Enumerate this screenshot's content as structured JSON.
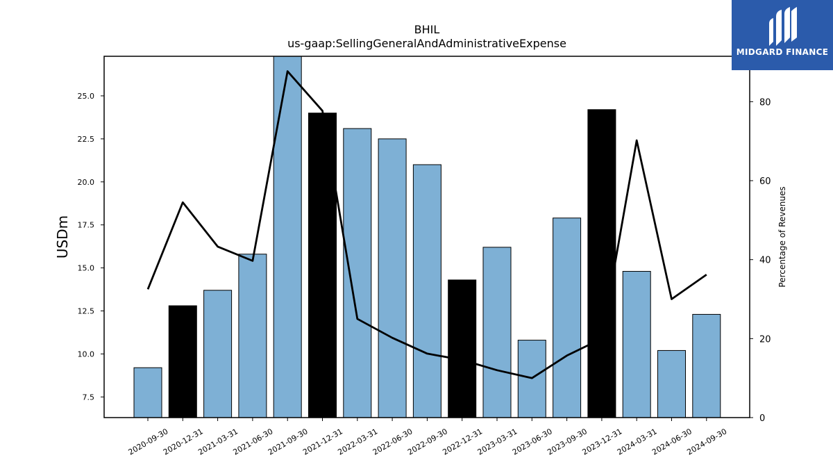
{
  "logo": {
    "brand_text": "MIDGARD FINANCE",
    "icon": "midgard-logo-icon",
    "background": "#2b5bab"
  },
  "chart_data": {
    "type": "bar",
    "title": "BHIL",
    "subtitle": "us-gaap:SellingGeneralAndAdministrativeExpense",
    "ylabel": "USDm",
    "y2label": "Percentage of Revenues",
    "categories": [
      "2020-09-30",
      "2020-12-31",
      "2021-03-31",
      "2021-06-30",
      "2021-09-30",
      "2021-12-31",
      "2022-03-31",
      "2022-06-30",
      "2022-09-30",
      "2022-12-31",
      "2023-03-31",
      "2023-06-30",
      "2023-09-30",
      "2023-12-31",
      "2024-03-31",
      "2024-06-30",
      "2024-09-30"
    ],
    "series": [
      {
        "values": [
          9.2,
          12.8,
          13.7,
          15.8,
          27.3,
          24.0,
          23.1,
          22.5,
          21.0,
          14.3,
          16.2,
          10.8,
          17.9,
          24.2,
          14.8,
          10.2,
          12.3
        ],
        "highlight": [
          false,
          true,
          false,
          false,
          false,
          true,
          false,
          false,
          false,
          true,
          false,
          false,
          false,
          true,
          false,
          false,
          false
        ],
        "color": "#7eb0d5",
        "highlight_color": "#000000",
        "axis": "left"
      },
      {
        "type": "line",
        "values": [
          32.5,
          54.5,
          43.3,
          39.7,
          87.7,
          77.7,
          25.0,
          20.2,
          16.2,
          14.6,
          12.0,
          10.0,
          15.7,
          20.0,
          70.2,
          30.0,
          36.2
        ],
        "color": "#000000",
        "axis": "right"
      }
    ],
    "ylim": [
      6.3,
      27.3
    ],
    "yticks": [
      "7.5",
      "10.0",
      "12.5",
      "15.0",
      "17.5",
      "20.0",
      "22.5",
      "25.0"
    ],
    "y2lim": [
      0,
      91.5
    ],
    "y2ticks": [
      "0",
      "20",
      "40",
      "60",
      "80"
    ],
    "grid": false,
    "legend": "none"
  }
}
